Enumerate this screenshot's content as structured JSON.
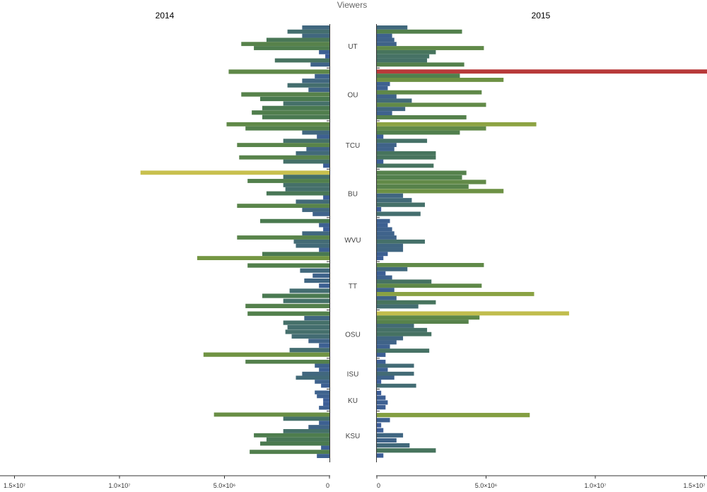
{
  "chart_data": {
    "type": "bar",
    "title": "Viewers",
    "orientation": "horizontal",
    "panels": [
      "2014",
      "2015"
    ],
    "xlim": [
      0,
      15000000
    ],
    "xticks": [
      0,
      5000000,
      10000000,
      15000000
    ],
    "xtick_labels": [
      "0",
      "5.0×10⁶",
      "1.0×10⁷",
      "1.5×10⁷"
    ],
    "color_scale": {
      "low": "#3b5b9e",
      "mid": "#4a7a4f",
      "high_mid": "#c8c04e",
      "high": "#b83a3a"
    },
    "teams": [
      {
        "name": "UT",
        "y2014": [
          1300000,
          2000000,
          1300000,
          3000000,
          4200000,
          3600000,
          500000,
          200000,
          2600000,
          900000
        ],
        "y2015": [
          1400000,
          3900000,
          700000,
          800000,
          900000,
          4900000,
          2700000,
          2400000,
          2300000,
          4000000
        ]
      },
      {
        "name": "OU",
        "y2014": [
          4800000,
          700000,
          1300000,
          2000000,
          1000000,
          4200000,
          3300000,
          2200000,
          3200000,
          3700000,
          3200000
        ],
        "y2015": [
          15400000,
          3800000,
          5800000,
          600000,
          500000,
          4800000,
          900000,
          1600000,
          5000000,
          1300000,
          700000,
          4100000
        ]
      },
      {
        "name": "TCU",
        "y2014": [
          4900000,
          4000000,
          1300000,
          600000,
          2200000,
          4400000,
          1100000,
          1600000,
          4300000,
          2200000,
          300000
        ],
        "y2015": [
          7300000,
          5000000,
          3800000,
          300000,
          2300000,
          900000,
          800000,
          2700000,
          2700000,
          300000,
          2600000
        ]
      },
      {
        "name": "BU",
        "y2014": [
          9000000,
          2200000,
          3900000,
          2200000,
          2100000,
          3000000,
          300000,
          1600000,
          4400000,
          1300000,
          800000
        ],
        "y2015": [
          4100000,
          3900000,
          5000000,
          4200000,
          5800000,
          1200000,
          1600000,
          2200000,
          200000,
          2000000
        ]
      },
      {
        "name": "WVU",
        "y2014": [
          3300000,
          500000,
          300000,
          1300000,
          4400000,
          1700000,
          1600000,
          500000,
          3200000,
          6300000
        ],
        "y2015": [
          600000,
          500000,
          700000,
          800000,
          900000,
          2200000,
          1200000,
          1200000,
          500000,
          300000
        ]
      },
      {
        "name": "TT",
        "y2014": [
          3900000,
          1400000,
          800000,
          1200000,
          500000,
          1900000,
          3200000,
          2200000,
          4000000
        ],
        "y2015": [
          4900000,
          1400000,
          400000,
          700000,
          2500000,
          4800000,
          800000,
          7200000,
          900000,
          2700000,
          1900000
        ]
      },
      {
        "name": "OSU",
        "y2014": [
          3900000,
          1200000,
          2200000,
          2000000,
          2100000,
          1800000,
          1000000,
          500000,
          1900000,
          6000000
        ],
        "y2015": [
          8800000,
          4700000,
          4200000,
          1700000,
          2300000,
          2500000,
          1200000,
          900000,
          600000,
          2400000,
          400000
        ]
      },
      {
        "name": "ISU",
        "y2014": [
          4000000,
          700000,
          500000,
          1300000,
          1600000,
          700000,
          400000
        ],
        "y2015": [
          400000,
          1700000,
          500000,
          1700000,
          800000,
          200000,
          1800000
        ]
      },
      {
        "name": "KU",
        "y2014": [
          700000,
          600000,
          300000,
          300000,
          500000
        ],
        "y2015": [
          200000,
          400000,
          500000,
          400000
        ]
      },
      {
        "name": "KSU",
        "y2014": [
          5500000,
          2200000,
          500000,
          1000000,
          2200000,
          3600000,
          3000000,
          3300000,
          400000,
          3800000,
          600000
        ],
        "y2015": [
          7000000,
          600000,
          200000,
          300000,
          1200000,
          900000,
          1500000,
          2700000,
          300000
        ]
      }
    ]
  }
}
